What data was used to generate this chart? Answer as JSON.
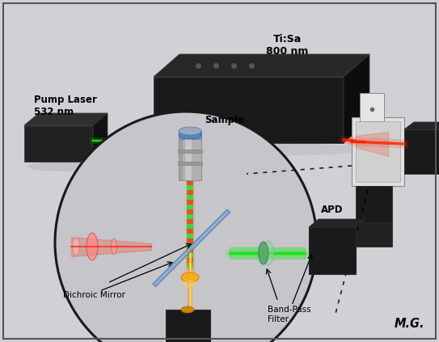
{
  "bg_color": "#d0d0d5",
  "border_color": "#555555",
  "pump_laser_label": "Pump Laser\n532 nm",
  "tisa_label": "Ti:Sa\n800 nm",
  "sample_label": "Sample",
  "dichroic_label": "Dichroic Mirror",
  "apd_label1": "APD",
  "apd_label2": "APD",
  "bpf_label": "Band-Pass\nFilter",
  "mg_label": "M.G.",
  "green_color": "#00ee00",
  "red_color": "#ff2200",
  "orange_color": "#ff8800",
  "yellow_color": "#ffcc00",
  "dark_color": "#1a1a1a",
  "white_color": "#e8e8e8",
  "circle_bg": "#c5c5ca"
}
